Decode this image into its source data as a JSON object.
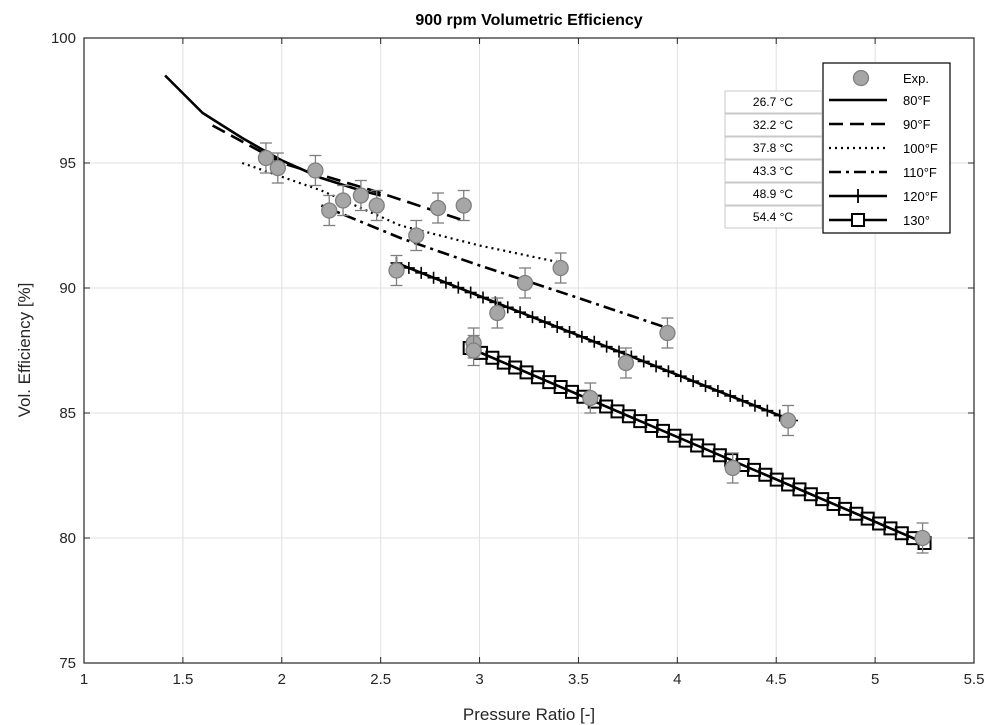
{
  "chart_data": {
    "type": "scatter",
    "title": "900 rpm Volumetric Efficiency",
    "xlabel": "Pressure Ratio [-]",
    "ylabel": "Vol. Efficiency [%]",
    "xlim": [
      1,
      5.5
    ],
    "ylim": [
      75,
      100
    ],
    "xticks": [
      "1",
      "1.5",
      "2",
      "2.5",
      "3",
      "3.5",
      "4",
      "4.5",
      "5",
      "5.5"
    ],
    "yticks": [
      "75",
      "80",
      "85",
      "90",
      "95",
      "100"
    ],
    "grid": true,
    "legend_position": "top-right",
    "experimental": {
      "name": "Exp.",
      "error": 0.6,
      "points": [
        [
          1.92,
          95.2
        ],
        [
          1.98,
          94.8
        ],
        [
          2.17,
          94.7
        ],
        [
          2.24,
          93.1
        ],
        [
          2.31,
          93.5
        ],
        [
          2.4,
          93.7
        ],
        [
          2.48,
          93.3
        ],
        [
          2.68,
          92.1
        ],
        [
          2.79,
          93.2
        ],
        [
          2.92,
          93.3
        ],
        [
          2.58,
          90.7
        ],
        [
          3.09,
          89.0
        ],
        [
          3.23,
          90.2
        ],
        [
          3.41,
          90.8
        ],
        [
          3.95,
          88.2
        ],
        [
          2.97,
          87.8
        ],
        [
          2.97,
          87.5
        ],
        [
          3.56,
          85.6
        ],
        [
          3.74,
          87.0
        ],
        [
          4.28,
          82.8
        ],
        [
          4.56,
          84.7
        ],
        [
          5.24,
          80.0
        ]
      ]
    },
    "series": [
      {
        "name": "80°F",
        "celsius": "26.7 °C",
        "style": "solid",
        "x": [
          1.41,
          1.6,
          1.8,
          2.0,
          2.2,
          2.4,
          2.5
        ],
        "y": [
          98.5,
          97.0,
          96.0,
          95.1,
          94.4,
          93.9,
          93.7
        ]
      },
      {
        "name": "90°F",
        "celsius": "32.2 °C",
        "style": "dashed",
        "x": [
          1.65,
          2.0,
          2.5,
          2.92
        ],
        "y": [
          96.5,
          95.0,
          93.8,
          92.7
        ]
      },
      {
        "name": "100°F",
        "celsius": "37.8 °C",
        "style": "dotted",
        "x": [
          1.8,
          2.2,
          2.6,
          3.0,
          3.42
        ],
        "y": [
          95.0,
          93.9,
          92.5,
          91.7,
          91.0
        ]
      },
      {
        "name": "110°F",
        "celsius": "43.3 °C",
        "style": "dashdot",
        "x": [
          2.2,
          2.6,
          3.0,
          3.5,
          3.95
        ],
        "y": [
          93.3,
          92.0,
          90.9,
          89.6,
          88.4
        ]
      },
      {
        "name": "120°F",
        "celsius": "48.9 °C",
        "style": "plus",
        "x": [
          2.58,
          4.58
        ],
        "y": [
          91.0,
          84.7
        ]
      },
      {
        "name": "130°",
        "celsius": "54.4 °C",
        "style": "square",
        "x": [
          2.95,
          5.25
        ],
        "y": [
          87.6,
          79.8
        ]
      }
    ]
  }
}
